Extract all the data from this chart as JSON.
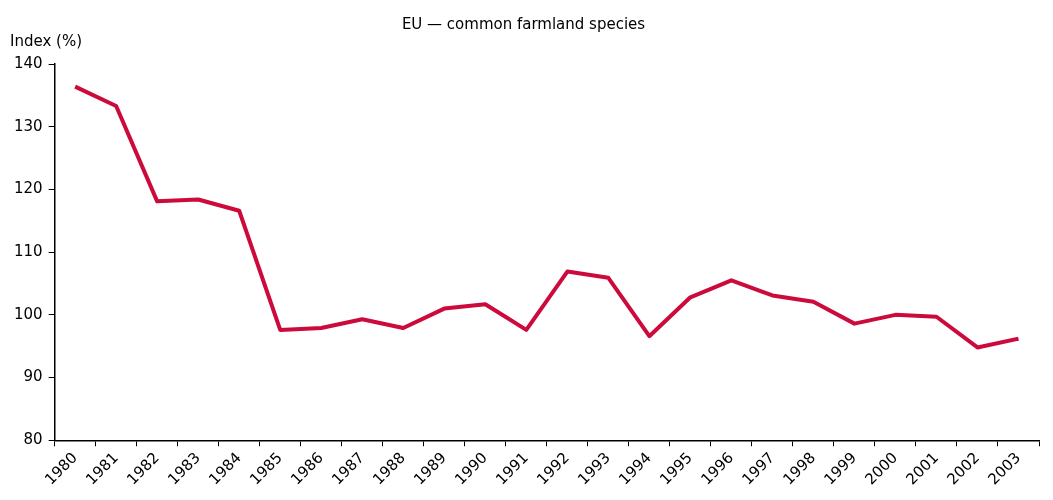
{
  "chart_data": {
    "type": "line",
    "title": "EU — common farmland species",
    "ylabel": "Index (%)",
    "categories": [
      "1980",
      "1981",
      "1982",
      "1983",
      "1984",
      "1985",
      "1986",
      "1987",
      "1988",
      "1989",
      "1990",
      "1991",
      "1992",
      "1993",
      "1994",
      "1995",
      "1996",
      "1997",
      "1998",
      "1999",
      "2000",
      "2001",
      "2002",
      "2003"
    ],
    "series": [
      {
        "color": "#cc0a3c",
        "values": [
          136.4,
          133.3,
          118.1,
          118.4,
          116.6,
          97.6,
          97.9,
          99.3,
          97.9,
          101.0,
          101.7,
          97.6,
          106.9,
          105.9,
          96.6,
          102.8,
          105.5,
          103.1,
          102.1,
          98.6,
          100.0,
          99.7,
          94.8,
          96.2
        ]
      }
    ],
    "ylim": [
      80,
      140
    ],
    "yticks": [
      80,
      90,
      100,
      110,
      120,
      130,
      140
    ],
    "grid": false,
    "legend": false,
    "marker": "none",
    "line_style": "solid"
  }
}
